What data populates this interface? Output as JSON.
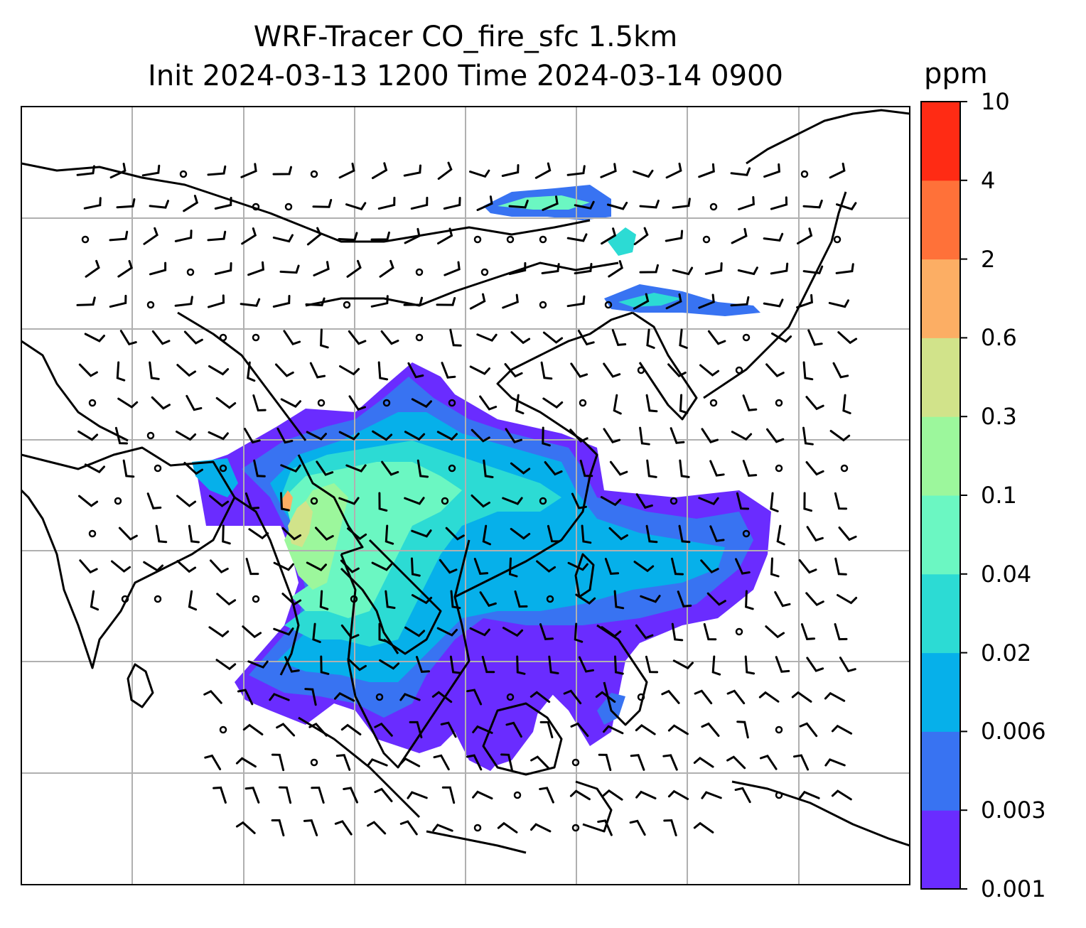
{
  "title": {
    "line1": "WRF-Tracer CO_fire_sfc 1.5km",
    "line2": "Init 2024-03-13 1200 Time 2024-03-14 0900"
  },
  "chart_data": {
    "type": "heatmap",
    "title": "WRF-Tracer CO_fire_sfc 1.5km",
    "subtitle": "Init 2024-03-13 1200 Time 2024-03-14 0900",
    "xlabel": "",
    "ylabel": "",
    "grid": true,
    "colorbar": {
      "label": "ppm",
      "levels": [
        "0.001",
        "0.003",
        "0.006",
        "0.02",
        "0.04",
        "0.1",
        "0.3",
        "0.6",
        "2",
        "4",
        "10"
      ],
      "colors": [
        "#6a2cff",
        "#3873f2",
        "#06b0ea",
        "#2cdbd4",
        "#6bf7c2",
        "#9cf79c",
        "#d1e38a",
        "#fcae64",
        "#ff7139",
        "#ff2b14"
      ]
    },
    "overlays": [
      "wind barbs",
      "coastlines",
      "country borders"
    ],
    "legend_position": "right"
  },
  "colors": {
    "frame": "#000000",
    "gridline": "#b0b0b0",
    "coastline": "#000000"
  }
}
